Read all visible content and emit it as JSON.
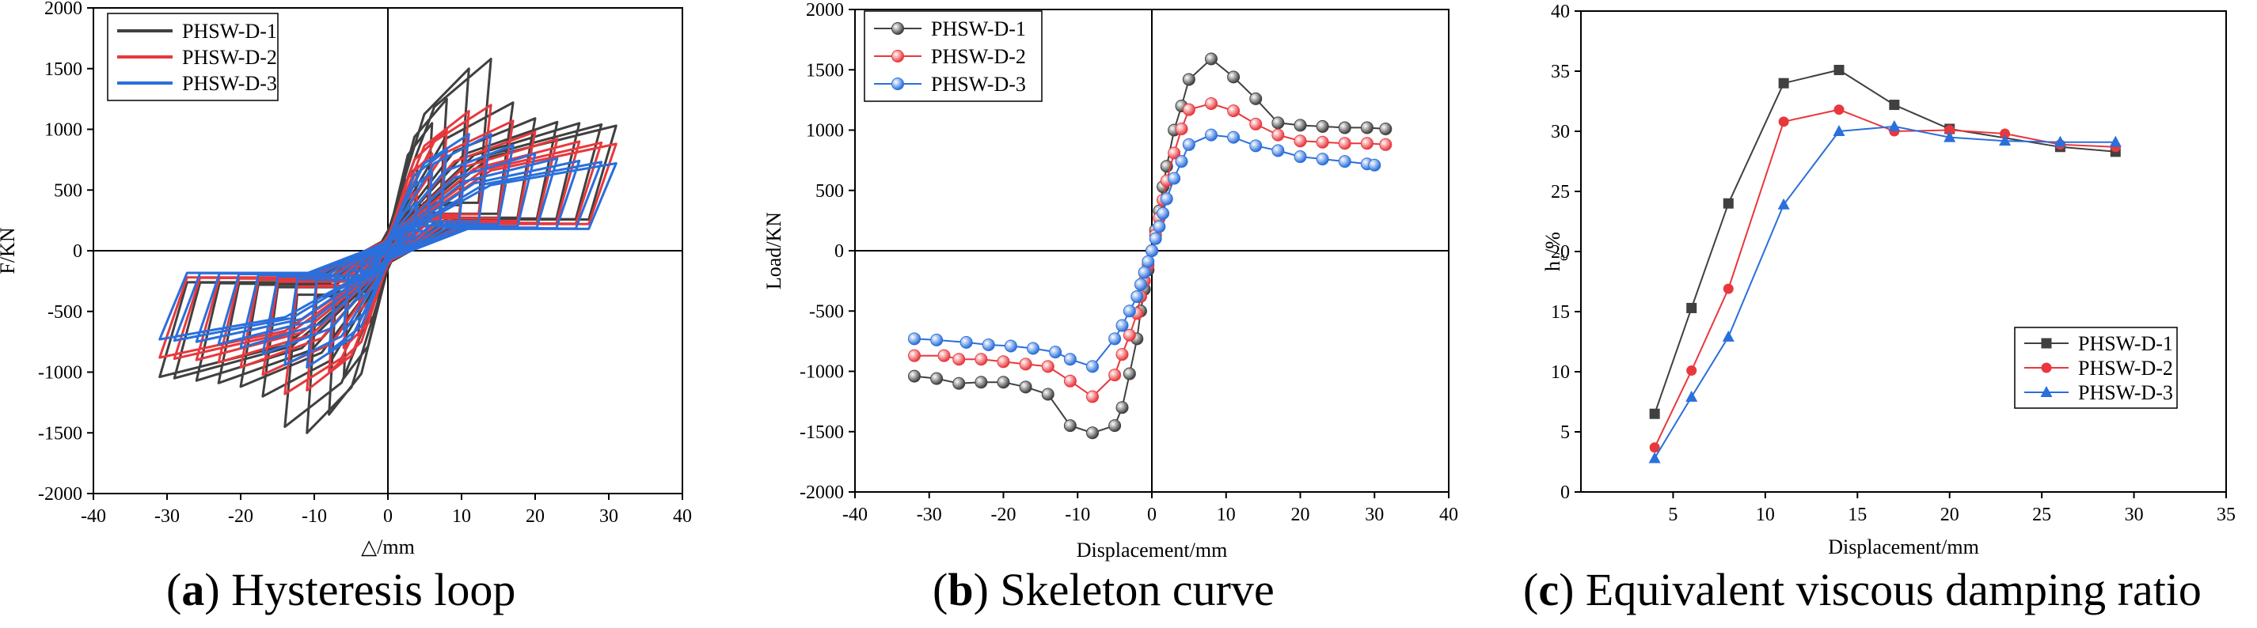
{
  "colors": {
    "d1": "#404040",
    "d2": "#e8383d",
    "d3": "#2a6fdb"
  },
  "captions": [
    {
      "letter": "a",
      "text": " Hysteresis loop"
    },
    {
      "letter": "b",
      "text": " Skeleton curve"
    },
    {
      "letter": "c",
      "text": " Equivalent viscous damping ratio"
    }
  ],
  "chart_data": [
    {
      "type": "line",
      "title": "(a) Hysteresis loop",
      "xlabel": "△/mm",
      "ylabel": "F/KN",
      "xlim": [
        -40,
        40
      ],
      "ylim": [
        -2000,
        2000
      ],
      "xticks": [
        -40,
        -30,
        -20,
        -10,
        0,
        10,
        20,
        30,
        40
      ],
      "yticks": [
        -2000,
        -1500,
        -1000,
        -500,
        0,
        500,
        1000,
        1500,
        2000
      ],
      "legend_position": "top-left",
      "series": [
        {
          "name": "PHSW-D-1",
          "amplitudes": [
            2,
            4,
            6,
            8,
            11,
            14,
            17,
            20,
            23,
            26,
            29,
            31
          ],
          "peak_pos": [
            300,
            700,
            1050,
            1250,
            1500,
            1580,
            1220,
            1090,
            1060,
            1050,
            1040,
            1030
          ],
          "peak_neg": [
            -300,
            -700,
            -1050,
            -1350,
            -1500,
            -1450,
            -1200,
            -1120,
            -1090,
            -1070,
            -1050,
            -1040
          ]
        },
        {
          "name": "PHSW-D-2",
          "amplitudes": [
            2,
            4,
            6,
            8,
            11,
            14,
            17,
            20,
            23,
            26,
            29,
            31
          ],
          "peak_pos": [
            220,
            500,
            800,
            1000,
            1150,
            1200,
            1070,
            980,
            920,
            900,
            890,
            880
          ],
          "peak_neg": [
            -220,
            -500,
            -800,
            -1000,
            -1150,
            -1180,
            -1020,
            -960,
            -920,
            -900,
            -890,
            -880
          ]
        },
        {
          "name": "PHSW-D-3",
          "amplitudes": [
            2,
            4,
            6,
            8,
            11,
            14,
            17,
            20,
            23,
            26,
            29,
            31
          ],
          "peak_pos": [
            170,
            400,
            650,
            830,
            960,
            960,
            870,
            800,
            760,
            740,
            730,
            720
          ],
          "peak_neg": [
            -170,
            -400,
            -650,
            -830,
            -960,
            -940,
            -850,
            -800,
            -770,
            -750,
            -740,
            -730
          ]
        }
      ]
    },
    {
      "type": "line",
      "title": "(b) Skeleton curve",
      "xlabel": "Displacement/mm",
      "ylabel": "Load/KN",
      "xlim": [
        -40,
        40
      ],
      "ylim": [
        -2000,
        2000
      ],
      "xticks": [
        -40,
        -30,
        -20,
        -10,
        0,
        10,
        20,
        30,
        40
      ],
      "yticks": [
        -2000,
        -1500,
        -1000,
        -500,
        0,
        500,
        1000,
        1500,
        2000
      ],
      "legend_position": "top-left",
      "series": [
        {
          "name": "PHSW-D-1",
          "x": [
            -32,
            -29,
            -26,
            -23,
            -20,
            -17,
            -14,
            -11,
            -8,
            -5,
            -4,
            -3,
            -2,
            -1.5,
            -1,
            -0.5,
            0,
            0.5,
            1,
            1.5,
            2,
            3,
            4,
            5,
            8,
            11,
            14,
            17,
            20,
            23,
            26,
            29,
            31.5
          ],
          "y": [
            -1040,
            -1060,
            -1100,
            -1090,
            -1090,
            -1130,
            -1190,
            -1450,
            -1510,
            -1450,
            -1300,
            -1020,
            -730,
            -500,
            -320,
            -160,
            0,
            170,
            330,
            530,
            700,
            1000,
            1200,
            1420,
            1590,
            1440,
            1260,
            1060,
            1040,
            1030,
            1020,
            1020,
            1010
          ]
        },
        {
          "name": "PHSW-D-2",
          "x": [
            -32,
            -28,
            -26,
            -23,
            -20,
            -17,
            -14,
            -11,
            -8,
            -5,
            -4,
            -3,
            -2,
            -1.5,
            -1,
            -0.5,
            0,
            0.5,
            1,
            1.5,
            2,
            3,
            4,
            5,
            8,
            11,
            14,
            17,
            20,
            23,
            26,
            29,
            31.5
          ],
          "y": [
            -870,
            -870,
            -900,
            -900,
            -920,
            -940,
            -960,
            -1080,
            -1210,
            -1030,
            -860,
            -700,
            -520,
            -380,
            -250,
            -120,
            0,
            130,
            270,
            420,
            580,
            810,
            1010,
            1170,
            1220,
            1160,
            1050,
            960,
            910,
            900,
            890,
            890,
            880
          ]
        },
        {
          "name": "PHSW-D-3",
          "x": [
            -32,
            -29,
            -25,
            -22,
            -19,
            -16,
            -13,
            -11,
            -8,
            -5,
            -4,
            -3,
            -2,
            -1.5,
            -1,
            -0.5,
            0,
            0.5,
            1,
            1.5,
            2,
            3,
            4,
            5,
            8,
            11,
            14,
            17,
            20,
            23,
            26,
            29,
            30
          ],
          "y": [
            -730,
            -740,
            -760,
            -780,
            -790,
            -810,
            -840,
            -900,
            -960,
            -730,
            -620,
            -500,
            -380,
            -280,
            -180,
            -90,
            0,
            100,
            200,
            310,
            430,
            600,
            740,
            880,
            960,
            940,
            870,
            830,
            780,
            760,
            740,
            720,
            710
          ]
        }
      ]
    },
    {
      "type": "line",
      "title": "(c) Equivalent viscous damping ratio",
      "xlabel": "Displacement/mm",
      "ylabel": "h",
      "ylabel_sub": "e",
      "ylabel_suffix": "/%",
      "xlim": [
        0,
        35
      ],
      "ylim": [
        0,
        40
      ],
      "xticks": [
        5,
        10,
        15,
        20,
        25,
        30,
        35
      ],
      "yticks": [
        0,
        5,
        10,
        15,
        20,
        25,
        30,
        35,
        40
      ],
      "legend_position": "lower-right",
      "series": [
        {
          "name": "PHSW-D-1",
          "marker": "square",
          "x": [
            4,
            6,
            8,
            11,
            14,
            17,
            20,
            26,
            29
          ],
          "y": [
            6.5,
            15.3,
            24,
            34,
            35.1,
            32.2,
            30.2,
            28.7,
            28.3
          ]
        },
        {
          "name": "PHSW-D-2",
          "marker": "circle",
          "x": [
            4,
            6,
            8,
            11,
            14,
            17,
            20,
            23,
            26,
            29
          ],
          "y": [
            3.7,
            10.1,
            16.9,
            30.8,
            31.8,
            30,
            30.1,
            29.8,
            28.9,
            28.7
          ]
        },
        {
          "name": "PHSW-D-3",
          "marker": "triangle",
          "x": [
            4,
            6,
            8,
            11,
            14,
            17,
            20,
            23,
            26,
            29
          ],
          "y": [
            2.8,
            7.9,
            12.9,
            23.9,
            30,
            30.4,
            29.5,
            29.2,
            29.1,
            29.1
          ]
        }
      ]
    }
  ]
}
